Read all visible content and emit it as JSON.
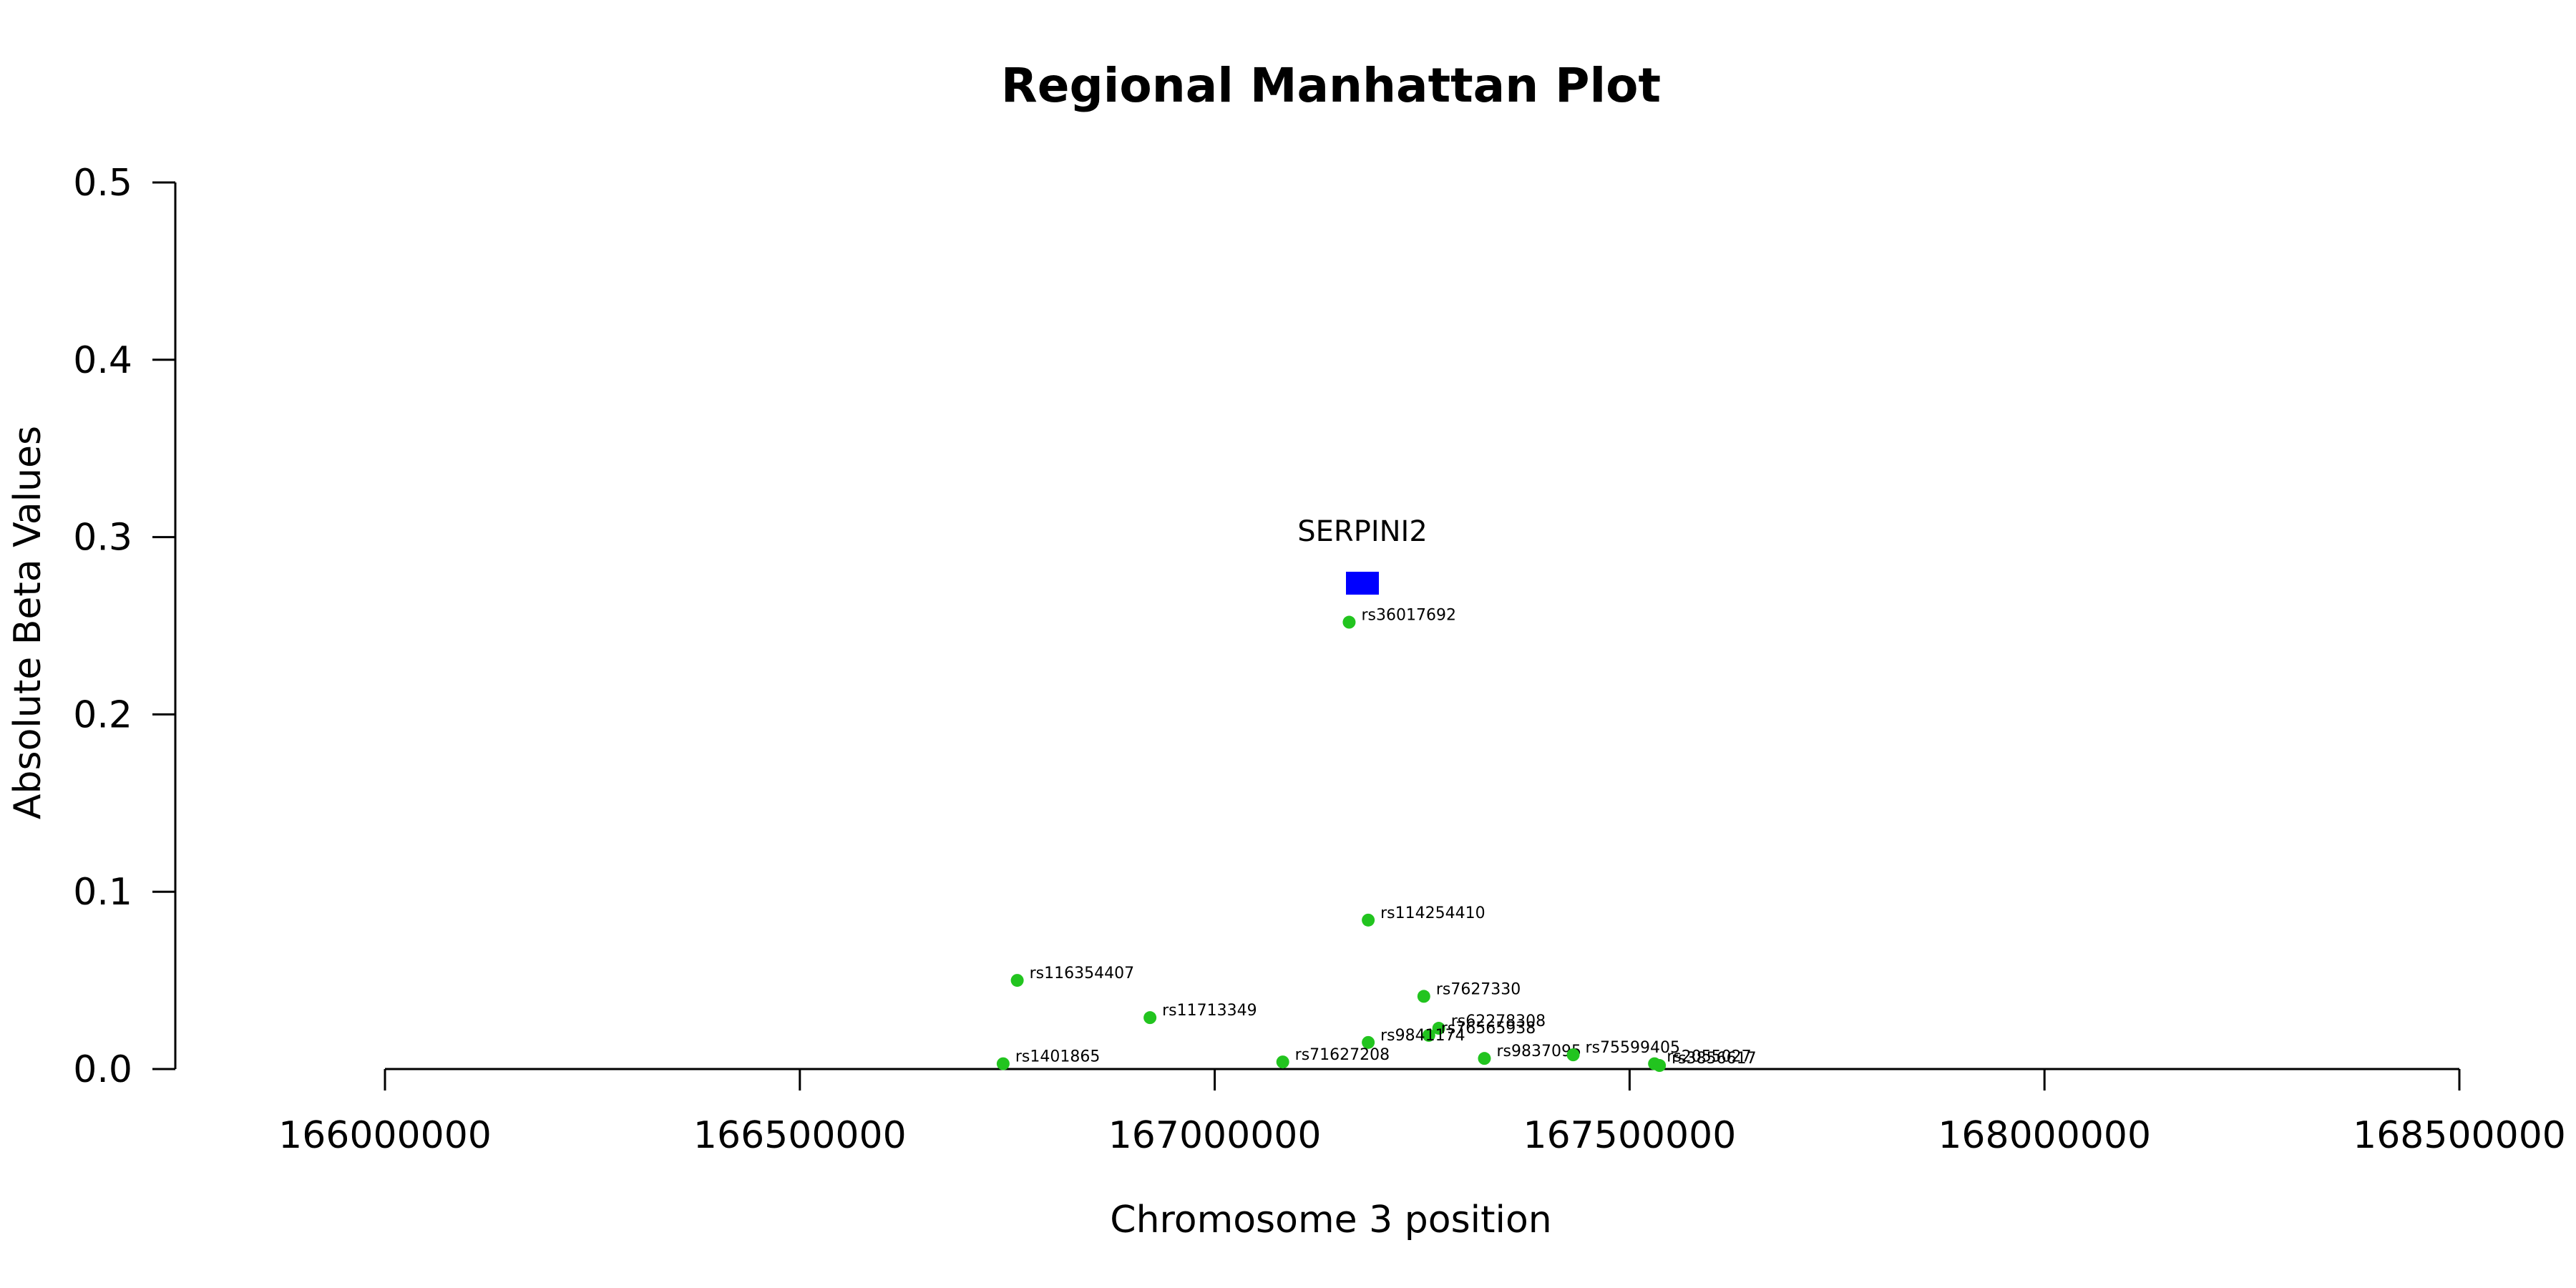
{
  "chart_data": {
    "type": "scatter",
    "title": "Regional Manhattan Plot",
    "xlabel": "Chromosome 3 position",
    "ylabel": "Absolute Beta Values",
    "xlim": [
      166000000,
      168500000
    ],
    "ylim": [
      0,
      0.5
    ],
    "x_ticks": [
      166000000,
      166500000,
      167000000,
      167500000,
      168000000,
      168500000
    ],
    "y_ticks": [
      0.0,
      0.1,
      0.2,
      0.3,
      0.4,
      0.5
    ],
    "grid": false,
    "colors": {
      "snp": "#22c41f",
      "gene": "#0000ff"
    },
    "series": [
      {
        "name": "",
        "points": [
          {
            "label": "rs36017692",
            "x": 167162000,
            "y": 0.252
          },
          {
            "label": "rs114254410",
            "x": 167185000,
            "y": 0.084
          },
          {
            "label": "rs116354407",
            "x": 166762000,
            "y": 0.05
          },
          {
            "label": "rs7627330",
            "x": 167252000,
            "y": 0.041
          },
          {
            "label": "rs11713349",
            "x": 166922000,
            "y": 0.029
          },
          {
            "label": "rs62278308",
            "x": 167270000,
            "y": 0.023
          },
          {
            "label": "rs76565938",
            "x": 167258000,
            "y": 0.019
          },
          {
            "label": "rs9841174",
            "x": 167185000,
            "y": 0.015
          },
          {
            "label": "rs9837095",
            "x": 167325000,
            "y": 0.006
          },
          {
            "label": "rs75599405",
            "x": 167432000,
            "y": 0.008
          },
          {
            "label": "rs2055027",
            "x": 167530000,
            "y": 0.003
          },
          {
            "label": "rs3856617",
            "x": 167536000,
            "y": 0.002
          },
          {
            "label": "rs71627208",
            "x": 167082000,
            "y": 0.004
          },
          {
            "label": "rs1401865",
            "x": 166745000,
            "y": 0.003
          }
        ]
      }
    ],
    "genes": [
      {
        "label": "SERPINI2",
        "x": 167178000,
        "y": 0.274
      }
    ]
  }
}
